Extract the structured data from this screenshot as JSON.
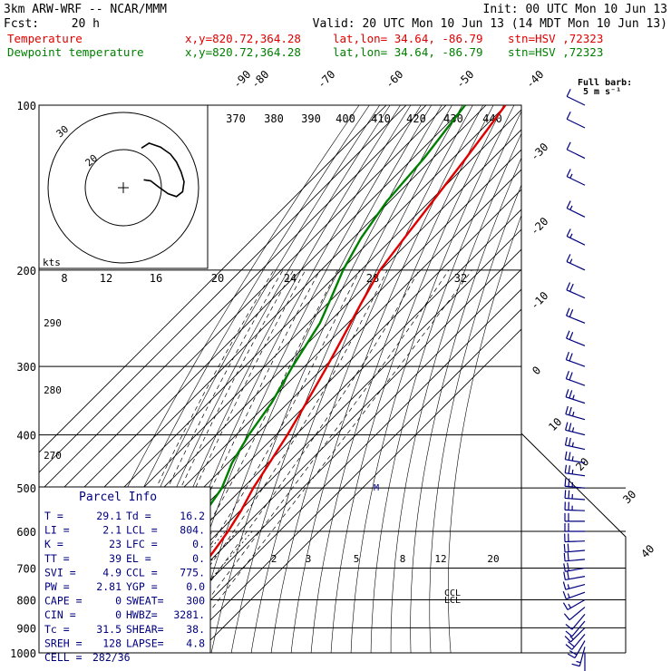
{
  "header": {
    "model": "3km ARW-WRF -- NCAR/MMM",
    "init": "Init: 00 UTC Mon 10 Jun 13",
    "fcst_label": "Fcst:",
    "fcst_value": "20 h",
    "valid": "Valid: 20 UTC Mon 10 Jun 13 (14 MDT Mon 10 Jun 13)",
    "temp_line": {
      "label": "Temperature",
      "xy": "x,y=820.72,364.28",
      "latlon": "lat,lon= 34.64, -86.79",
      "stn": "stn=HSV ,72323"
    },
    "dew_line": {
      "label": "Dewpoint temperature",
      "xy": "x,y=820.72,364.28",
      "latlon": "lat,lon= 34.64, -86.79",
      "stn": "stn=HSV ,72323"
    }
  },
  "colors": {
    "temperature": "#e00000",
    "dewpoint": "#008000",
    "parcel": "#00007f",
    "wind": "#00007f"
  },
  "chart_data": {
    "type": "line",
    "y_scale": "log-pressure",
    "pressure_ticks": [
      "100",
      "200",
      "300",
      "400",
      "500",
      "600",
      "700",
      "800",
      "900",
      "1000"
    ],
    "isotherm_labels": [
      "-90",
      "-80",
      "-70",
      "-60",
      "-50",
      "-40",
      "-30",
      "-20",
      "-10",
      "0",
      "10",
      "20",
      "30",
      "40"
    ],
    "theta_labels": [
      "370",
      "380",
      "390",
      "400",
      "410",
      "420",
      "430",
      "440"
    ],
    "theta_left_labels": [
      "290",
      "280",
      "270"
    ],
    "hodo_speed_labels": [
      "8",
      "12",
      "16",
      "20",
      "24",
      "28",
      "32"
    ],
    "hodo_rings": [
      "30",
      "20"
    ],
    "hodo_units": "kts",
    "mixing_ratio_labels": [
      "2",
      "3",
      "5",
      "8",
      "12",
      "20"
    ],
    "markers": {
      "m": "M",
      "ccl": "CCL",
      "lcl": "LCL"
    },
    "series": [
      {
        "name": "Temperature",
        "points": [
          [
            1000,
            29.0
          ],
          [
            975,
            27.0
          ],
          [
            950,
            24.5
          ],
          [
            925,
            22.0
          ],
          [
            900,
            20.3
          ],
          [
            875,
            19.0
          ],
          [
            850,
            17.5
          ],
          [
            825,
            15.2
          ],
          [
            800,
            13.8
          ],
          [
            775,
            12.4
          ],
          [
            750,
            11.3
          ],
          [
            700,
            9.3
          ],
          [
            650,
            7.0
          ],
          [
            600,
            4.3
          ],
          [
            550,
            0.5
          ],
          [
            500,
            -4.8
          ],
          [
            475,
            -6.9
          ],
          [
            450,
            -9.2
          ],
          [
            400,
            -14.3
          ],
          [
            350,
            -20.8
          ],
          [
            300,
            -28.7
          ],
          [
            250,
            -38.7
          ],
          [
            230,
            -43.3
          ],
          [
            200,
            -50.5
          ],
          [
            175,
            -54.3
          ],
          [
            150,
            -58.5
          ],
          [
            125,
            -63.5
          ],
          [
            110,
            -67.3
          ],
          [
            100,
            -70.3
          ]
        ]
      },
      {
        "name": "Dewpoint temperature",
        "points": [
          [
            1000,
            15.0
          ],
          [
            975,
            15.5
          ],
          [
            950,
            15.7
          ],
          [
            925,
            15.8
          ],
          [
            900,
            14.8
          ],
          [
            875,
            11.5
          ],
          [
            850,
            10.5
          ],
          [
            825,
            9.8
          ],
          [
            800,
            9.6
          ],
          [
            775,
            8.0
          ],
          [
            750,
            3.5
          ],
          [
            700,
            -4.0
          ],
          [
            650,
            -10.0
          ],
          [
            600,
            -14.0
          ],
          [
            550,
            -17.0
          ],
          [
            500,
            -20.5
          ],
          [
            450,
            -28.0
          ],
          [
            400,
            -33.6
          ],
          [
            350,
            -38.2
          ],
          [
            300,
            -46.0
          ],
          [
            250,
            -54.0
          ],
          [
            225,
            -61.0
          ],
          [
            200,
            -69.0
          ],
          [
            175,
            -76.0
          ],
          [
            150,
            -81.5
          ],
          [
            125,
            -84.5
          ],
          [
            110,
            -88.0
          ],
          [
            100,
            -90.5
          ]
        ]
      }
    ],
    "wind_barbs": [
      {
        "p": 1000,
        "dir": 180,
        "spd": 7
      },
      {
        "p": 975,
        "dir": 195,
        "spd": 9
      },
      {
        "p": 950,
        "dir": 210,
        "spd": 10
      },
      {
        "p": 925,
        "dir": 220,
        "spd": 10
      },
      {
        "p": 900,
        "dir": 225,
        "spd": 8
      },
      {
        "p": 875,
        "dir": 220,
        "spd": 6
      },
      {
        "p": 850,
        "dir": 220,
        "spd": 6
      },
      {
        "p": 825,
        "dir": 230,
        "spd": 7
      },
      {
        "p": 800,
        "dir": 240,
        "spd": 8
      },
      {
        "p": 775,
        "dir": 250,
        "spd": 8
      },
      {
        "p": 750,
        "dir": 255,
        "spd": 9
      },
      {
        "p": 725,
        "dir": 260,
        "spd": 10
      },
      {
        "p": 700,
        "dir": 260,
        "spd": 10
      },
      {
        "p": 675,
        "dir": 265,
        "spd": 10
      },
      {
        "p": 650,
        "dir": 265,
        "spd": 11
      },
      {
        "p": 625,
        "dir": 268,
        "spd": 11
      },
      {
        "p": 600,
        "dir": 270,
        "spd": 12
      },
      {
        "p": 575,
        "dir": 270,
        "spd": 12
      },
      {
        "p": 550,
        "dir": 272,
        "spd": 13
      },
      {
        "p": 525,
        "dir": 274,
        "spd": 13
      },
      {
        "p": 500,
        "dir": 275,
        "spd": 14
      },
      {
        "p": 475,
        "dir": 278,
        "spd": 14
      },
      {
        "p": 450,
        "dir": 280,
        "spd": 14
      },
      {
        "p": 425,
        "dir": 282,
        "spd": 14
      },
      {
        "p": 400,
        "dir": 284,
        "spd": 14
      },
      {
        "p": 375,
        "dir": 286,
        "spd": 13
      },
      {
        "p": 350,
        "dir": 288,
        "spd": 13
      },
      {
        "p": 325,
        "dir": 290,
        "spd": 12
      },
      {
        "p": 300,
        "dir": 290,
        "spd": 12
      },
      {
        "p": 275,
        "dir": 292,
        "spd": 11
      },
      {
        "p": 250,
        "dir": 292,
        "spd": 10
      },
      {
        "p": 225,
        "dir": 294,
        "spd": 10
      },
      {
        "p": 200,
        "dir": 295,
        "spd": 9
      },
      {
        "p": 180,
        "dir": 296,
        "spd": 9
      },
      {
        "p": 160,
        "dir": 296,
        "spd": 8
      },
      {
        "p": 140,
        "dir": 296,
        "spd": 8
      },
      {
        "p": 125,
        "dir": 296,
        "spd": 7
      },
      {
        "p": 110,
        "dir": 296,
        "spd": 6
      },
      {
        "p": 100,
        "dir": 296,
        "spd": 5
      }
    ],
    "hodograph": [
      [
        0.0,
        -8.0
      ],
      [
        1.0,
        -9.0
      ],
      [
        2.5,
        -8.2
      ],
      [
        3.8,
        -6.8
      ],
      [
        4.6,
        -5.2
      ],
      [
        5.2,
        -3.2
      ],
      [
        5.6,
        -1.2
      ],
      [
        5.4,
        0.8
      ],
      [
        4.6,
        1.8
      ],
      [
        3.5,
        1.2
      ],
      [
        2.2,
        -0.2
      ],
      [
        1.2,
        -1.4
      ],
      [
        0.3,
        -1.6
      ]
    ],
    "full_barb_label": "Full barb:",
    "full_barb_value": "5 m s⁻¹"
  },
  "parcel_info": {
    "title": "Parcel Info",
    "rows": [
      [
        {
          "label": "T  =",
          "value": "29.1"
        },
        {
          "label": "Td =",
          "value": "16.2"
        }
      ],
      [
        {
          "label": "LI =",
          "value": "2.1"
        },
        {
          "label": "LCL =",
          "value": "804."
        }
      ],
      [
        {
          "label": "K  =",
          "value": "23"
        },
        {
          "label": "LFC =",
          "value": "0."
        }
      ],
      [
        {
          "label": "TT =",
          "value": "39"
        },
        {
          "label": "EL  =",
          "value": "0."
        }
      ],
      [
        {
          "label": "SVI =",
          "value": "4.9"
        },
        {
          "label": "CCL =",
          "value": "775."
        }
      ],
      [
        {
          "label": "PW =",
          "value": "2.81"
        },
        {
          "label": "YGP =",
          "value": "0.0"
        }
      ],
      [
        {
          "label": "CAPE =",
          "value": "0"
        },
        {
          "label": "SWEAT=",
          "value": "300"
        }
      ],
      [
        {
          "label": "CIN =",
          "value": "0"
        },
        {
          "label": "HWBZ=",
          "value": "3281."
        }
      ],
      [
        {
          "label": "Tc =",
          "value": "31.5"
        },
        {
          "label": "SHEAR=",
          "value": "38."
        }
      ],
      [
        {
          "label": "SREH =",
          "value": "128"
        },
        {
          "label": "LAPSE=",
          "value": "4.8"
        }
      ]
    ],
    "cell_label": "CELL =",
    "cell_value": "282/36"
  }
}
